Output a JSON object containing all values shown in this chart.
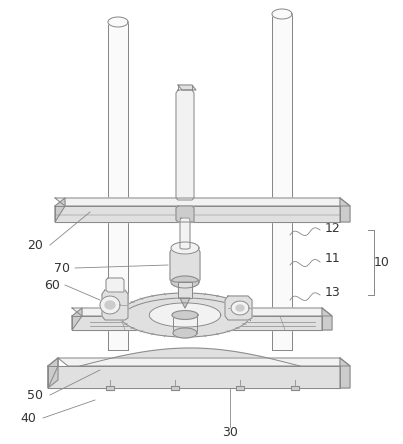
{
  "bg_color": "#ffffff",
  "lc": "#888888",
  "lc_dark": "#555555",
  "lw": 0.7,
  "fc_light": "#f2f2f2",
  "fc_mid": "#e0e0e0",
  "fc_dark": "#cccccc",
  "fc_white": "#fafafa"
}
